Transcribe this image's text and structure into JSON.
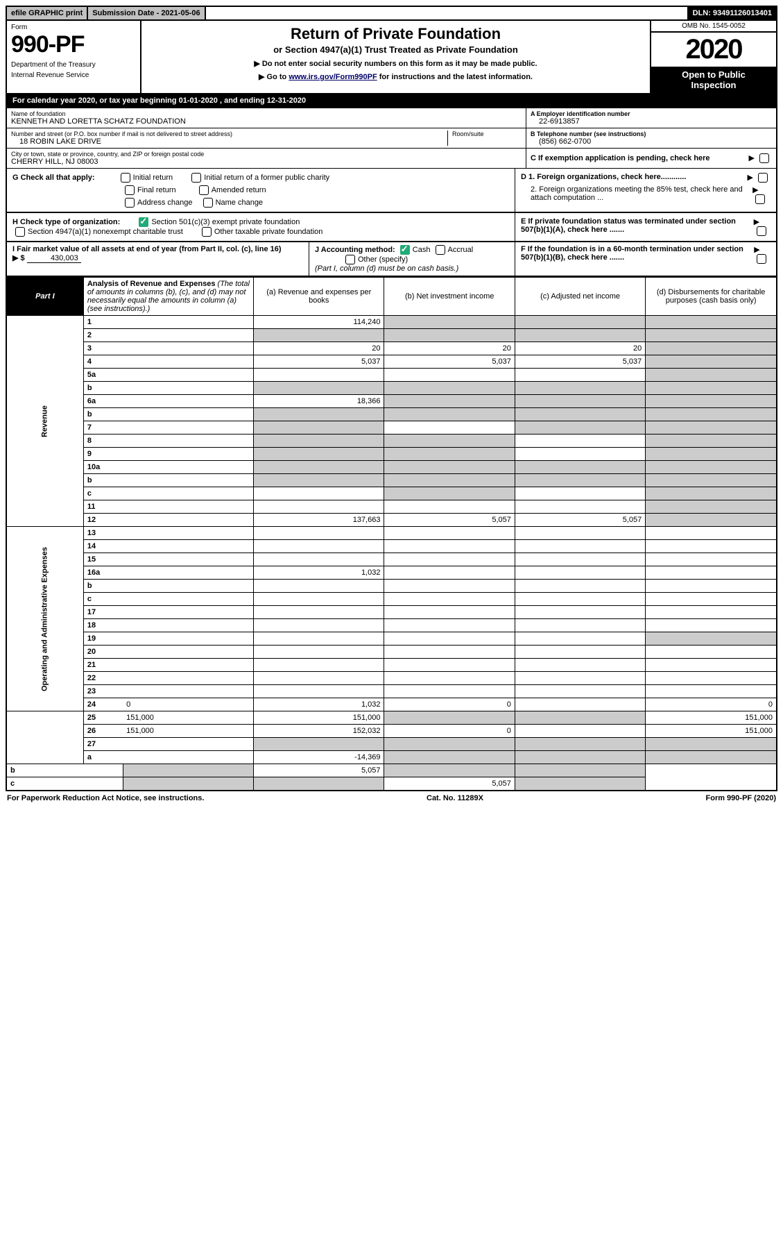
{
  "topbar": {
    "efile": "efile GRAPHIC print",
    "submission": "Submission Date - 2021-05-06",
    "dln": "DLN: 93491126013401"
  },
  "header": {
    "form_label": "Form",
    "form_number": "990-PF",
    "dept1": "Department of the Treasury",
    "dept2": "Internal Revenue Service",
    "title": "Return of Private Foundation",
    "subtitle": "or Section 4947(a)(1) Trust Treated as Private Foundation",
    "note1": "▶ Do not enter social security numbers on this form as it may be made public.",
    "note2_pre": "▶ Go to ",
    "note2_link": "www.irs.gov/Form990PF",
    "note2_post": " for instructions and the latest information.",
    "omb": "OMB No. 1545-0052",
    "year": "2020",
    "open_public1": "Open to Public",
    "open_public2": "Inspection"
  },
  "calendar": "For calendar year 2020, or tax year beginning 01-01-2020                                             , and ending 12-31-2020",
  "info": {
    "name_label": "Name of foundation",
    "name": "KENNETH AND LORETTA SCHATZ FOUNDATION",
    "ein_label": "A Employer identification number",
    "ein": "22-6913857",
    "street_label": "Number and street (or P.O. box number if mail is not delivered to street address)",
    "street": "18 ROBIN LAKE DRIVE",
    "room_label": "Room/suite",
    "phone_label": "B Telephone number (see instructions)",
    "phone": "(856) 662-0700",
    "city_label": "City or town, state or province, country, and ZIP or foreign postal code",
    "city": "CHERRY HILL, NJ  08003",
    "c_label": "C If exemption application is pending, check here",
    "g_label": "G Check all that apply:",
    "g_opts": [
      "Initial return",
      "Initial return of a former public charity",
      "Final return",
      "Amended return",
      "Address change",
      "Name change"
    ],
    "d1": "D 1. Foreign organizations, check here............",
    "d2": "2. Foreign organizations meeting the 85% test, check here and attach computation ...",
    "h_label": "H Check type of organization:",
    "h_opt1": "Section 501(c)(3) exempt private foundation",
    "h_opt2": "Section 4947(a)(1) nonexempt charitable trust",
    "h_opt3": "Other taxable private foundation",
    "e_label": "E  If private foundation status was terminated under section 507(b)(1)(A), check here .......",
    "i_label": "I Fair market value of all assets at end of year (from Part II, col. (c), line 16)",
    "i_value": "430,003",
    "i_arrow": "▶ $",
    "j_label": "J Accounting method:",
    "j_cash": "Cash",
    "j_accrual": "Accrual",
    "j_other": "Other (specify)",
    "j_note": "(Part I, column (d) must be on cash basis.)",
    "f_label": "F  If the foundation is in a 60-month termination under section 507(b)(1)(B), check here ......."
  },
  "part1": {
    "label": "Part I",
    "title": "Analysis of Revenue and Expenses",
    "title_note": "(The total of amounts in columns (b), (c), and (d) may not necessarily equal the amounts in column (a) (see instructions).)",
    "col_a": "(a)  Revenue and expenses per books",
    "col_b": "(b)  Net investment income",
    "col_c": "(c)  Adjusted net income",
    "col_d": "(d)  Disbursements for charitable purposes (cash basis only)",
    "revenue_label": "Revenue",
    "expenses_label": "Operating and Administrative Expenses"
  },
  "rows": [
    {
      "n": "1",
      "d": "",
      "a": "114,240",
      "b": "",
      "c": "",
      "grey_bcd": true
    },
    {
      "n": "2",
      "d": "",
      "a": "",
      "b": "",
      "c": "",
      "grey_all": true
    },
    {
      "n": "3",
      "d": "",
      "a": "20",
      "b": "20",
      "c": "20",
      "grey_d": true
    },
    {
      "n": "4",
      "d": "",
      "a": "5,037",
      "b": "5,037",
      "c": "5,037",
      "grey_d": true
    },
    {
      "n": "5a",
      "d": "",
      "a": "",
      "b": "",
      "c": "",
      "grey_d": true
    },
    {
      "n": "b",
      "d": "",
      "a": "",
      "b": "",
      "c": "",
      "grey_all": true,
      "no_amt": true
    },
    {
      "n": "6a",
      "d": "",
      "a": "18,366",
      "b": "",
      "c": "",
      "grey_bcd": true
    },
    {
      "n": "b",
      "d": "",
      "a": "",
      "b": "",
      "c": "",
      "grey_all": true,
      "no_amt": true
    },
    {
      "n": "7",
      "d": "",
      "a": "",
      "b": "",
      "c": "",
      "grey_a": true,
      "grey_cd": true
    },
    {
      "n": "8",
      "d": "",
      "a": "",
      "b": "",
      "c": "",
      "grey_ab": true,
      "grey_d": true
    },
    {
      "n": "9",
      "d": "",
      "a": "",
      "b": "",
      "c": "",
      "grey_ab": true,
      "grey_d": true
    },
    {
      "n": "10a",
      "d": "",
      "a": "",
      "b": "",
      "c": "",
      "grey_all": true,
      "no_amt": true
    },
    {
      "n": "b",
      "d": "",
      "a": "",
      "b": "",
      "c": "",
      "grey_all": true,
      "no_amt": true
    },
    {
      "n": "c",
      "d": "",
      "a": "",
      "b": "",
      "c": "",
      "grey_b": true,
      "grey_d": true
    },
    {
      "n": "11",
      "d": "",
      "a": "",
      "b": "",
      "c": "",
      "grey_d": true
    },
    {
      "n": "12",
      "d": "",
      "a": "137,663",
      "b": "5,057",
      "c": "5,057",
      "grey_d": true
    },
    {
      "n": "13",
      "d": "",
      "a": "",
      "b": "",
      "c": ""
    },
    {
      "n": "14",
      "d": "",
      "a": "",
      "b": "",
      "c": ""
    },
    {
      "n": "15",
      "d": "",
      "a": "",
      "b": "",
      "c": ""
    },
    {
      "n": "16a",
      "d": "",
      "a": "1,032",
      "b": "",
      "c": ""
    },
    {
      "n": "b",
      "d": "",
      "a": "",
      "b": "",
      "c": ""
    },
    {
      "n": "c",
      "d": "",
      "a": "",
      "b": "",
      "c": ""
    },
    {
      "n": "17",
      "d": "",
      "a": "",
      "b": "",
      "c": ""
    },
    {
      "n": "18",
      "d": "",
      "a": "",
      "b": "",
      "c": ""
    },
    {
      "n": "19",
      "d": "",
      "a": "",
      "b": "",
      "c": "",
      "grey_d": true
    },
    {
      "n": "20",
      "d": "",
      "a": "",
      "b": "",
      "c": ""
    },
    {
      "n": "21",
      "d": "",
      "a": "",
      "b": "",
      "c": ""
    },
    {
      "n": "22",
      "d": "",
      "a": "",
      "b": "",
      "c": ""
    },
    {
      "n": "23",
      "d": "",
      "a": "",
      "b": "",
      "c": ""
    },
    {
      "n": "24",
      "d": "0",
      "a": "1,032",
      "b": "0",
      "c": ""
    },
    {
      "n": "25",
      "d": "151,000",
      "a": "151,000",
      "b": "",
      "c": "",
      "grey_bc": true
    },
    {
      "n": "26",
      "d": "151,000",
      "a": "152,032",
      "b": "0",
      "c": ""
    },
    {
      "n": "27",
      "d": "",
      "a": "",
      "b": "",
      "c": "",
      "grey_all": true
    },
    {
      "n": "a",
      "d": "",
      "a": "-14,369",
      "b": "",
      "c": "",
      "grey_bcd": true
    },
    {
      "n": "b",
      "d": "",
      "a": "",
      "b": "5,057",
      "c": "",
      "grey_a": true,
      "grey_cd": true
    },
    {
      "n": "c",
      "d": "",
      "a": "",
      "b": "",
      "c": "5,057",
      "grey_ab": true,
      "grey_d": true
    }
  ],
  "footer": {
    "left": "For Paperwork Reduction Act Notice, see instructions.",
    "mid": "Cat. No. 11289X",
    "right": "Form 990-PF (2020)"
  }
}
